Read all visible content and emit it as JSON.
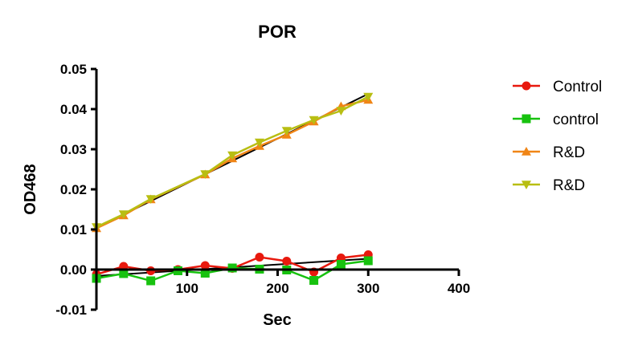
{
  "chart_data": {
    "type": "line",
    "title": "POR",
    "xlabel": "Sec",
    "ylabel": "OD468",
    "xlim": [
      0,
      400
    ],
    "ylim": [
      -0.01,
      0.05
    ],
    "x_ticks": [
      100,
      200,
      300,
      400
    ],
    "x_tick_labels": [
      "100",
      "200",
      "300",
      "400"
    ],
    "y_ticks": [
      -0.01,
      0.0,
      0.01,
      0.02,
      0.03,
      0.04,
      0.05
    ],
    "y_tick_labels": [
      "-0.01",
      "0.00",
      "0.01",
      "0.02",
      "0.03",
      "0.04",
      "0.05"
    ],
    "grid": false,
    "legend_position": "right",
    "x": [
      0,
      30,
      60,
      90,
      120,
      150,
      180,
      210,
      240,
      270,
      300
    ],
    "series": [
      {
        "name": "Control",
        "color": "#e8190e",
        "marker": "circle",
        "values": [
          -0.0012,
          0.0008,
          -0.0003,
          0.0,
          0.001,
          0.0003,
          0.0031,
          0.0021,
          -0.0006,
          0.0029,
          0.0037
        ]
      },
      {
        "name": "control",
        "color": "#17c20f",
        "marker": "square",
        "values": [
          -0.0022,
          -0.001,
          -0.0028,
          -0.0003,
          -0.0009,
          0.0004,
          0.0001,
          -0.0001,
          -0.0027,
          0.0013,
          0.0022
        ]
      },
      {
        "name": "R&D",
        "color": "#f08516",
        "marker": "triangle-up",
        "values": [
          0.0103,
          0.0135,
          0.0175,
          null,
          0.0237,
          0.0277,
          0.0308,
          0.0336,
          0.0369,
          0.0407,
          0.0423
        ]
      },
      {
        "name": "R&D",
        "color": "#b8be12",
        "marker": "triangle-down",
        "values": [
          0.0106,
          0.0138,
          0.0176,
          null,
          0.0238,
          0.0285,
          0.0317,
          0.0346,
          0.0373,
          0.0396,
          0.0431
        ]
      }
    ],
    "fit_lines": [
      {
        "color": "#000000",
        "from": [
          0,
          -0.0016
        ],
        "to": [
          300,
          0.0027
        ]
      },
      {
        "color": "#000000",
        "from": [
          0,
          0.0104
        ],
        "to": [
          300,
          0.0438
        ]
      }
    ]
  }
}
